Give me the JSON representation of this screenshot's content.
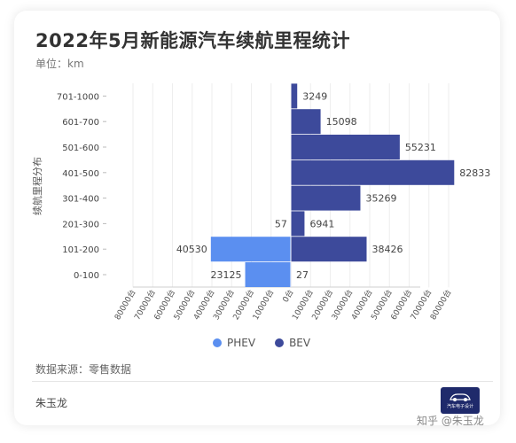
{
  "title": "2022年5月新能源汽车续航里程统计",
  "unit": "单位：km",
  "source": "数据来源：零售数据",
  "author": "朱玉龙",
  "watermark": "知乎 @朱玉龙",
  "logo_text": "汽车电子设计",
  "colors": {
    "phev": "#5b8ff0",
    "bev": "#3d4a9b"
  },
  "chart_data": {
    "type": "bar",
    "orientation": "horizontal-diverging",
    "ylabel": "续航里程分布",
    "categories": [
      "701-1000",
      "601-700",
      "501-600",
      "401-500",
      "301-400",
      "201-300",
      "101-200",
      "0-100"
    ],
    "series": [
      {
        "name": "PHEV",
        "values": [
          null,
          null,
          null,
          null,
          null,
          57,
          40530,
          23125
        ]
      },
      {
        "name": "BEV",
        "values": [
          3249,
          15098,
          55231,
          82833,
          35269,
          6941,
          38426,
          27
        ]
      }
    ],
    "xticks": [
      "80000台",
      "70000台",
      "60000台",
      "50000台",
      "40000台",
      "30000台",
      "20000台",
      "10000台",
      "0台",
      "10000台",
      "20000台",
      "30000台",
      "40000台",
      "50000台",
      "60000台",
      "70000台",
      "80000台"
    ],
    "xlim": [
      -80000,
      80000
    ],
    "legend_position": "bottom"
  }
}
